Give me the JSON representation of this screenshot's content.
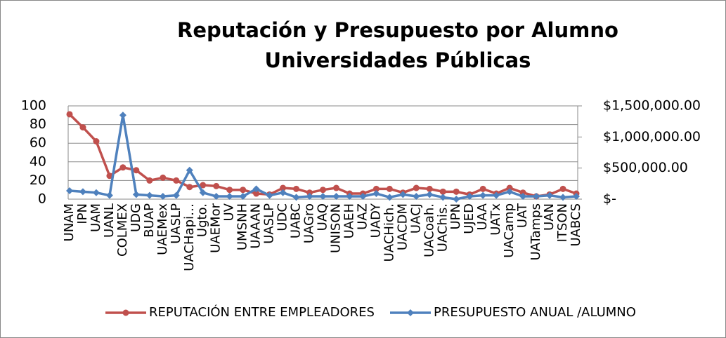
{
  "chart_data": {
    "type": "line",
    "title": [
      "Reputación y Presupuesto por Alumno",
      "Universidades Públicas"
    ],
    "categories": [
      "UNAM",
      "IPN",
      "UAM",
      "UANL",
      "COLMEX",
      "UDG",
      "BUAP",
      "UAEMex",
      "UASLP",
      "UACHapi…",
      "Ugto.",
      "UAEMor",
      "UV",
      "UMSNH",
      "UAAAN",
      "UASLP",
      "UDC",
      "UABC",
      "UAGro",
      "UAQ",
      "UNISON",
      "UAEH",
      "UAZ",
      "UADY",
      "UACHich.",
      "UACDM",
      "UACJ",
      "UACoah.",
      "UAChis.",
      "UPN",
      "UJED",
      "UAA",
      "UATx",
      "UACamp",
      "UAT",
      "UATamps",
      "UAN",
      "ITSON",
      "UABCS"
    ],
    "series": [
      {
        "name": "REPUTACIÓN ENTRE EMPLEADORES",
        "color": "#c0504d",
        "marker": "circle",
        "values": [
          91,
          77,
          62,
          25,
          34,
          31,
          20,
          23,
          20,
          13,
          15,
          14,
          10,
          10,
          6,
          5,
          12,
          11,
          7,
          10,
          12,
          6,
          6,
          11,
          11,
          7,
          12,
          11,
          8,
          8,
          5,
          11,
          6,
          12,
          7,
          3,
          5,
          11,
          6
        ]
      },
      {
        "name": "PRESUPUESTO ANUAL /ALUMNO",
        "color": "#4f81bd",
        "marker": "diamond",
        "axis": "y2",
        "values": [
          135000,
          120000,
          105000,
          60000,
          1350000,
          75000,
          60000,
          45000,
          60000,
          465000,
          105000,
          45000,
          45000,
          45000,
          165000,
          60000,
          105000,
          30000,
          45000,
          45000,
          45000,
          45000,
          45000,
          90000,
          30000,
          75000,
          45000,
          75000,
          30000,
          0,
          45000,
          60000,
          60000,
          120000,
          45000,
          45000,
          60000,
          30000,
          45000
        ]
      }
    ],
    "ylim": [
      0,
      100
    ],
    "yticks": [
      0,
      20,
      40,
      60,
      80,
      100
    ],
    "y2lim": [
      0,
      1500000
    ],
    "y2ticks": [
      {
        "value": 0,
        "label": "$-"
      },
      {
        "value": 500000,
        "label": "$500,000.00"
      },
      {
        "value": 1000000,
        "label": "$1,000,000.00"
      },
      {
        "value": 1500000,
        "label": "$1,500,000.00"
      }
    ],
    "grid": true,
    "legend": "bottom"
  }
}
